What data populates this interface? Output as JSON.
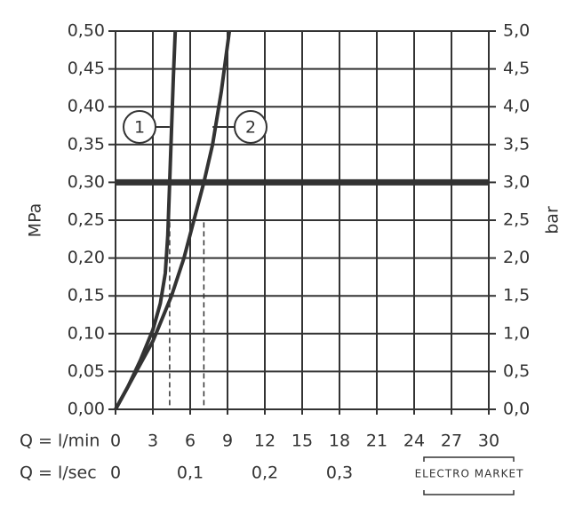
{
  "chart_data": {
    "type": "line",
    "x_label": "Q = l/min",
    "x2_label": "Q = l/sec",
    "y_label": "MPa",
    "y2_label": "bar",
    "xlim": [
      0,
      30
    ],
    "xticks": [
      0,
      3,
      6,
      9,
      12,
      15,
      18,
      21,
      24,
      27,
      30
    ],
    "x2lim": [
      0,
      0.5
    ],
    "x2ticks": [
      0,
      {
        "value": 0.1,
        "label": "0,1"
      },
      {
        "value": 0.2,
        "label": "0,2"
      },
      {
        "value": 0.3,
        "label": "0,3"
      }
    ],
    "ylim": [
      0,
      0.5
    ],
    "yticks": [
      {
        "value": 0,
        "label": "0,00"
      },
      {
        "value": 0.05,
        "label": "0,05"
      },
      {
        "value": 0.1,
        "label": "0,10"
      },
      {
        "value": 0.15,
        "label": "0,15"
      },
      {
        "value": 0.2,
        "label": "0,20"
      },
      {
        "value": 0.25,
        "label": "0,25"
      },
      {
        "value": 0.3,
        "label": "0,30"
      },
      {
        "value": 0.35,
        "label": "0,35"
      },
      {
        "value": 0.4,
        "label": "0,40"
      },
      {
        "value": 0.45,
        "label": "0,45"
      },
      {
        "value": 0.5,
        "label": "0,50"
      }
    ],
    "y2lim": [
      0,
      5
    ],
    "y2ticks": [
      {
        "value": 0,
        "label": "0,0"
      },
      {
        "value": 0.5,
        "label": "0,5"
      },
      {
        "value": 1,
        "label": "1,0"
      },
      {
        "value": 1.5,
        "label": "1,5"
      },
      {
        "value": 2,
        "label": "2,0"
      },
      {
        "value": 2.5,
        "label": "2,5"
      },
      {
        "value": 3,
        "label": "3,0"
      },
      {
        "value": 3.5,
        "label": "3,5"
      },
      {
        "value": 4,
        "label": "4,0"
      },
      {
        "value": 4.5,
        "label": "4,5"
      },
      {
        "value": 5,
        "label": "5,0"
      }
    ],
    "grid": true,
    "hline": 0.3,
    "dashed_x": [
      4.35,
      7.1
    ],
    "series": [
      {
        "name": "1",
        "color": "#333333",
        "x": [
          0,
          1,
          2,
          3,
          3.6,
          4,
          4.2,
          4.35,
          4.5,
          4.65,
          4.8
        ],
        "values": [
          0,
          0.03,
          0.065,
          0.105,
          0.14,
          0.18,
          0.23,
          0.3,
          0.37,
          0.44,
          0.5
        ]
      },
      {
        "name": "2",
        "color": "#333333",
        "x": [
          0,
          1.5,
          3,
          4.5,
          5.5,
          6.3,
          7.1,
          7.8,
          8.5,
          9.15
        ],
        "values": [
          0,
          0.045,
          0.09,
          0.15,
          0.2,
          0.25,
          0.3,
          0.35,
          0.42,
          0.5
        ]
      }
    ],
    "watermark": "ELECTRO MARKET"
  }
}
